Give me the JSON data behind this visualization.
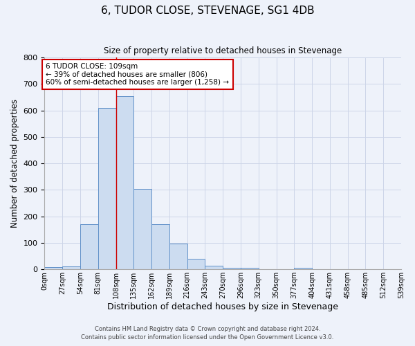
{
  "title": "6, TUDOR CLOSE, STEVENAGE, SG1 4DB",
  "subtitle": "Size of property relative to detached houses in Stevenage",
  "xlabel": "Distribution of detached houses by size in Stevenage",
  "ylabel": "Number of detached properties",
  "bin_edges": [
    0,
    27,
    54,
    81,
    108,
    135,
    162,
    189,
    216,
    243,
    270,
    297,
    324,
    351,
    378,
    405,
    432,
    459,
    486,
    513,
    540
  ],
  "bin_heights": [
    8,
    12,
    170,
    610,
    655,
    305,
    170,
    97,
    40,
    13,
    5,
    5,
    0,
    0,
    5,
    0,
    0,
    0,
    0,
    0
  ],
  "tick_labels": [
    "0sqm",
    "27sqm",
    "54sqm",
    "81sqm",
    "108sqm",
    "135sqm",
    "162sqm",
    "189sqm",
    "216sqm",
    "243sqm",
    "270sqm",
    "296sqm",
    "323sqm",
    "350sqm",
    "377sqm",
    "404sqm",
    "431sqm",
    "458sqm",
    "485sqm",
    "512sqm",
    "539sqm"
  ],
  "bar_facecolor": "#ccdcf0",
  "bar_edgecolor": "#6090c8",
  "grid_color": "#ccd5e8",
  "background_color": "#eef2fa",
  "vline_x": 109,
  "vline_color": "#cc0000",
  "annotation_text": "6 TUDOR CLOSE: 109sqm\n← 39% of detached houses are smaller (806)\n60% of semi-detached houses are larger (1,258) →",
  "annotation_box_edgecolor": "#cc0000",
  "ylim": [
    0,
    800
  ],
  "yticks": [
    0,
    100,
    200,
    300,
    400,
    500,
    600,
    700,
    800
  ],
  "footnote1": "Contains HM Land Registry data © Crown copyright and database right 2024.",
  "footnote2": "Contains public sector information licensed under the Open Government Licence v3.0."
}
